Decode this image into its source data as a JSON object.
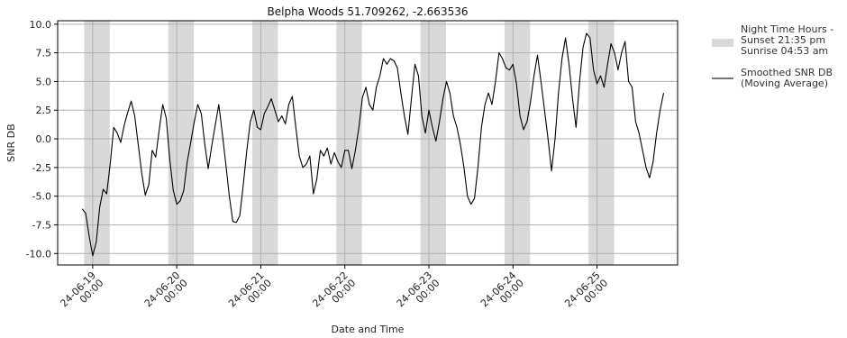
{
  "chart_data": {
    "type": "line",
    "title": "Belpha Woods 51.709262, -2.663536",
    "xlabel": "Date and Time",
    "ylabel": "SNR DB",
    "xlim": [
      "2024-06-18T14:00",
      "2024-06-25T23:00"
    ],
    "ylim": [
      -11,
      10.3
    ],
    "yticks": [
      -10.0,
      -7.5,
      -5.0,
      -2.5,
      0.0,
      2.5,
      5.0,
      7.5,
      10.0
    ],
    "xtick_dates": [
      "2024-06-19T00:00",
      "2024-06-20T00:00",
      "2024-06-21T00:00",
      "2024-06-22T00:00",
      "2024-06-23T00:00",
      "2024-06-24T00:00",
      "2024-06-25T00:00"
    ],
    "xtick_labels": [
      [
        "24-06-19",
        "00:00"
      ],
      [
        "24-06-20",
        "00:00"
      ],
      [
        "24-06-21",
        "00:00"
      ],
      [
        "24-06-22",
        "00:00"
      ],
      [
        "24-06-23",
        "00:00"
      ],
      [
        "24-06-24",
        "00:00"
      ],
      [
        "24-06-25",
        "00:00"
      ]
    ],
    "grid": "horizontal and vertical at ticks",
    "legend_position": "outside-right",
    "night_bands": [
      {
        "start": "2024-06-18T21:35",
        "end": "2024-06-19T04:53"
      },
      {
        "start": "2024-06-19T21:35",
        "end": "2024-06-20T04:53"
      },
      {
        "start": "2024-06-20T21:35",
        "end": "2024-06-21T04:53"
      },
      {
        "start": "2024-06-21T21:35",
        "end": "2024-06-22T04:53"
      },
      {
        "start": "2024-06-22T21:35",
        "end": "2024-06-23T04:53"
      },
      {
        "start": "2024-06-23T21:35",
        "end": "2024-06-24T04:53"
      },
      {
        "start": "2024-06-24T21:35",
        "end": "2024-06-25T04:53"
      }
    ],
    "series": [
      {
        "name": "Smoothed SNR DB (Moving Average)",
        "color": "#000000",
        "points": [
          [
            "2024-06-18T21:00",
            -6.1
          ],
          [
            "2024-06-18T22:00",
            -6.5
          ],
          [
            "2024-06-18T23:00",
            -8.5
          ],
          [
            "2024-06-19T00:00",
            -10.2
          ],
          [
            "2024-06-19T01:00",
            -9.0
          ],
          [
            "2024-06-19T02:00",
            -6.0
          ],
          [
            "2024-06-19T03:00",
            -4.4
          ],
          [
            "2024-06-19T04:00",
            -4.8
          ],
          [
            "2024-06-19T05:00",
            -2.2
          ],
          [
            "2024-06-19T06:00",
            1.0
          ],
          [
            "2024-06-19T07:00",
            0.5
          ],
          [
            "2024-06-19T08:00",
            -0.3
          ],
          [
            "2024-06-19T09:00",
            1.2
          ],
          [
            "2024-06-19T10:00",
            2.3
          ],
          [
            "2024-06-19T11:00",
            3.3
          ],
          [
            "2024-06-19T12:00",
            2.0
          ],
          [
            "2024-06-19T13:00",
            -0.5
          ],
          [
            "2024-06-19T14:00",
            -3.0
          ],
          [
            "2024-06-19T15:00",
            -4.9
          ],
          [
            "2024-06-19T16:00",
            -4.0
          ],
          [
            "2024-06-19T17:00",
            -1.0
          ],
          [
            "2024-06-19T18:00",
            -1.6
          ],
          [
            "2024-06-19T19:00",
            0.8
          ],
          [
            "2024-06-19T20:00",
            3.0
          ],
          [
            "2024-06-19T21:00",
            1.8
          ],
          [
            "2024-06-19T22:00",
            -1.8
          ],
          [
            "2024-06-19T23:00",
            -4.5
          ],
          [
            "2024-06-20T00:00",
            -5.7
          ],
          [
            "2024-06-20T01:00",
            -5.4
          ],
          [
            "2024-06-20T02:00",
            -4.5
          ],
          [
            "2024-06-20T03:00",
            -2.0
          ],
          [
            "2024-06-20T04:00",
            -0.3
          ],
          [
            "2024-06-20T05:00",
            1.5
          ],
          [
            "2024-06-20T06:00",
            3.0
          ],
          [
            "2024-06-20T07:00",
            2.2
          ],
          [
            "2024-06-20T08:00",
            -0.5
          ],
          [
            "2024-06-20T09:00",
            -2.6
          ],
          [
            "2024-06-20T10:00",
            -0.6
          ],
          [
            "2024-06-20T11:00",
            1.2
          ],
          [
            "2024-06-20T12:00",
            3.0
          ],
          [
            "2024-06-20T13:00",
            0.5
          ],
          [
            "2024-06-20T14:00",
            -2.2
          ],
          [
            "2024-06-20T15:00",
            -5.0
          ],
          [
            "2024-06-20T16:00",
            -7.2
          ],
          [
            "2024-06-20T17:00",
            -7.3
          ],
          [
            "2024-06-20T18:00",
            -6.7
          ],
          [
            "2024-06-20T19:00",
            -4.0
          ],
          [
            "2024-06-20T20:00",
            -1.0
          ],
          [
            "2024-06-20T21:00",
            1.5
          ],
          [
            "2024-06-20T22:00",
            2.5
          ],
          [
            "2024-06-20T23:00",
            1.0
          ],
          [
            "2024-06-21T00:00",
            0.8
          ],
          [
            "2024-06-21T01:00",
            2.2
          ],
          [
            "2024-06-21T02:00",
            2.8
          ],
          [
            "2024-06-21T03:00",
            3.5
          ],
          [
            "2024-06-21T04:00",
            2.5
          ],
          [
            "2024-06-21T05:00",
            1.5
          ],
          [
            "2024-06-21T06:00",
            2.0
          ],
          [
            "2024-06-21T07:00",
            1.3
          ],
          [
            "2024-06-21T08:00",
            3.0
          ],
          [
            "2024-06-21T09:00",
            3.7
          ],
          [
            "2024-06-21T10:00",
            1.0
          ],
          [
            "2024-06-21T11:00",
            -1.5
          ],
          [
            "2024-06-21T12:00",
            -2.5
          ],
          [
            "2024-06-21T13:00",
            -2.2
          ],
          [
            "2024-06-21T14:00",
            -1.5
          ],
          [
            "2024-06-21T15:00",
            -4.8
          ],
          [
            "2024-06-21T16:00",
            -3.5
          ],
          [
            "2024-06-21T17:00",
            -1.0
          ],
          [
            "2024-06-21T18:00",
            -1.5
          ],
          [
            "2024-06-21T19:00",
            -0.8
          ],
          [
            "2024-06-21T20:00",
            -2.2
          ],
          [
            "2024-06-21T21:00",
            -1.2
          ],
          [
            "2024-06-21T22:00",
            -2.0
          ],
          [
            "2024-06-21T23:00",
            -2.5
          ],
          [
            "2024-06-22T00:00",
            -1.0
          ],
          [
            "2024-06-22T01:00",
            -1.0
          ],
          [
            "2024-06-22T02:00",
            -2.6
          ],
          [
            "2024-06-22T03:00",
            -1.0
          ],
          [
            "2024-06-22T04:00",
            1.0
          ],
          [
            "2024-06-22T05:00",
            3.6
          ],
          [
            "2024-06-22T06:00",
            4.5
          ],
          [
            "2024-06-22T07:00",
            3.0
          ],
          [
            "2024-06-22T08:00",
            2.5
          ],
          [
            "2024-06-22T09:00",
            4.5
          ],
          [
            "2024-06-22T10:00",
            5.5
          ],
          [
            "2024-06-22T11:00",
            7.0
          ],
          [
            "2024-06-22T12:00",
            6.5
          ],
          [
            "2024-06-22T13:00",
            7.0
          ],
          [
            "2024-06-22T14:00",
            6.8
          ],
          [
            "2024-06-22T15:00",
            6.2
          ],
          [
            "2024-06-22T16:00",
            4.0
          ],
          [
            "2024-06-22T17:00",
            2.0
          ],
          [
            "2024-06-22T18:00",
            0.4
          ],
          [
            "2024-06-22T19:00",
            3.5
          ],
          [
            "2024-06-22T20:00",
            6.5
          ],
          [
            "2024-06-22T21:00",
            5.5
          ],
          [
            "2024-06-22T22:00",
            2.0
          ],
          [
            "2024-06-22T23:00",
            0.5
          ],
          [
            "2024-06-23T00:00",
            2.5
          ],
          [
            "2024-06-23T01:00",
            1.0
          ],
          [
            "2024-06-23T02:00",
            -0.2
          ],
          [
            "2024-06-23T03:00",
            1.5
          ],
          [
            "2024-06-23T04:00",
            3.5
          ],
          [
            "2024-06-23T05:00",
            5.0
          ],
          [
            "2024-06-23T06:00",
            4.0
          ],
          [
            "2024-06-23T07:00",
            2.0
          ],
          [
            "2024-06-23T08:00",
            1.0
          ],
          [
            "2024-06-23T09:00",
            -0.5
          ],
          [
            "2024-06-23T10:00",
            -2.5
          ],
          [
            "2024-06-23T11:00",
            -5.0
          ],
          [
            "2024-06-23T12:00",
            -5.7
          ],
          [
            "2024-06-23T13:00",
            -5.2
          ],
          [
            "2024-06-23T14:00",
            -2.5
          ],
          [
            "2024-06-23T15:00",
            1.0
          ],
          [
            "2024-06-23T16:00",
            3.0
          ],
          [
            "2024-06-23T17:00",
            4.0
          ],
          [
            "2024-06-23T18:00",
            3.0
          ],
          [
            "2024-06-23T19:00",
            5.0
          ],
          [
            "2024-06-23T20:00",
            7.5
          ],
          [
            "2024-06-23T21:00",
            7.0
          ],
          [
            "2024-06-23T22:00",
            6.2
          ],
          [
            "2024-06-23T23:00",
            6.0
          ],
          [
            "2024-06-24T00:00",
            6.5
          ],
          [
            "2024-06-24T01:00",
            4.8
          ],
          [
            "2024-06-24T02:00",
            2.0
          ],
          [
            "2024-06-24T03:00",
            0.8
          ],
          [
            "2024-06-24T04:00",
            1.5
          ],
          [
            "2024-06-24T05:00",
            3.2
          ],
          [
            "2024-06-24T06:00",
            5.5
          ],
          [
            "2024-06-24T07:00",
            7.3
          ],
          [
            "2024-06-24T08:00",
            5.0
          ],
          [
            "2024-06-24T09:00",
            2.5
          ],
          [
            "2024-06-24T10:00",
            0.0
          ],
          [
            "2024-06-24T11:00",
            -2.8
          ],
          [
            "2024-06-24T12:00",
            0.0
          ],
          [
            "2024-06-24T13:00",
            4.0
          ],
          [
            "2024-06-24T14:00",
            7.0
          ],
          [
            "2024-06-24T15:00",
            8.8
          ],
          [
            "2024-06-24T16:00",
            6.5
          ],
          [
            "2024-06-24T17:00",
            3.5
          ],
          [
            "2024-06-24T18:00",
            1.0
          ],
          [
            "2024-06-24T19:00",
            5.0
          ],
          [
            "2024-06-24T20:00",
            8.0
          ],
          [
            "2024-06-24T21:00",
            9.2
          ],
          [
            "2024-06-24T22:00",
            8.8
          ],
          [
            "2024-06-24T23:00",
            6.0
          ],
          [
            "2024-06-25T00:00",
            4.8
          ],
          [
            "2024-06-25T01:00",
            5.5
          ],
          [
            "2024-06-25T02:00",
            4.5
          ],
          [
            "2024-06-25T03:00",
            6.5
          ],
          [
            "2024-06-25T04:00",
            8.3
          ],
          [
            "2024-06-25T05:00",
            7.5
          ],
          [
            "2024-06-25T06:00",
            6.0
          ],
          [
            "2024-06-25T07:00",
            7.5
          ],
          [
            "2024-06-25T08:00",
            8.5
          ],
          [
            "2024-06-25T09:00",
            5.0
          ],
          [
            "2024-06-25T10:00",
            4.5
          ],
          [
            "2024-06-25T11:00",
            1.5
          ],
          [
            "2024-06-25T12:00",
            0.5
          ],
          [
            "2024-06-25T13:00",
            -1.0
          ],
          [
            "2024-06-25T14:00",
            -2.5
          ],
          [
            "2024-06-25T15:00",
            -3.4
          ],
          [
            "2024-06-25T16:00",
            -2.0
          ],
          [
            "2024-06-25T17:00",
            0.5
          ],
          [
            "2024-06-25T18:00",
            2.5
          ],
          [
            "2024-06-25T19:00",
            4.0
          ]
        ]
      }
    ]
  },
  "legend": {
    "items": [
      {
        "label_lines": [
          "Night Time Hours -",
          "Sunset 21:35 pm",
          "Sunrise 04:53 am"
        ],
        "swatch": "patch",
        "color": "#d9d9d9"
      },
      {
        "label_lines": [
          "Smoothed SNR DB",
          "(Moving Average)"
        ],
        "swatch": "line",
        "color": "#777777"
      }
    ]
  },
  "colors": {
    "night_band": "#d9d9d9",
    "grid": "#b0b0b0",
    "line": "#000000"
  }
}
